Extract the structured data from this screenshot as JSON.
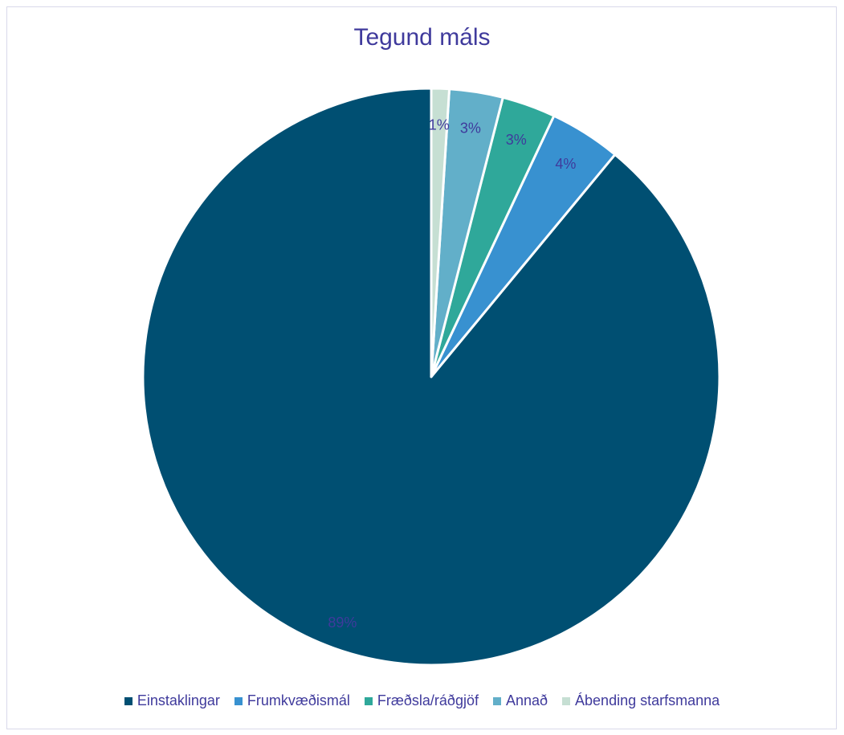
{
  "chart_data": {
    "type": "pie",
    "title": "Tegund máls",
    "categories": [
      "Einstaklingar",
      "Frumkvæðismál",
      "Fræðsla/ráðgjöf",
      "Annað",
      "Ábending starfsmanna"
    ],
    "values": [
      89,
      4,
      3,
      3,
      1
    ],
    "data_labels": [
      "89%",
      "4%",
      "3%",
      "3%",
      "1%"
    ],
    "colors": [
      "#004f72",
      "#3891d0",
      "#2fa89a",
      "#62afc9",
      "#c6dfd3"
    ],
    "label_color": "#3f3a9c",
    "legend_position": "bottom"
  }
}
